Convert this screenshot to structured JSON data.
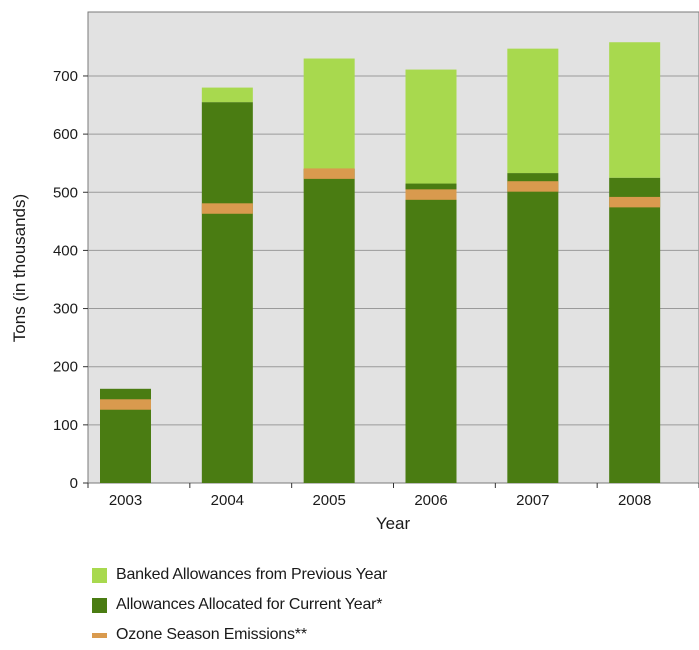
{
  "chart_data": {
    "type": "bar",
    "stacked": true,
    "categories": [
      "2003",
      "2004",
      "2005",
      "2006",
      "2007",
      "2008"
    ],
    "series": [
      {
        "name": "Allowances Allocated for Current Year*",
        "kind": "bar",
        "color": "#4a7c12",
        "values": [
          162,
          655,
          540,
          515,
          533,
          525
        ]
      },
      {
        "name": "Banked Allowances from Previous Year",
        "kind": "bar",
        "color": "#a8d94e",
        "values": [
          0,
          25,
          190,
          196,
          214,
          233
        ]
      },
      {
        "name": "Ozone Season Emissions**",
        "kind": "marker",
        "color": "#d99a4e",
        "values": [
          135,
          472,
          532,
          496,
          510,
          483
        ]
      }
    ],
    "xlabel": "Year",
    "ylabel": "Tons (in thousands)",
    "yticks": [
      0,
      100,
      200,
      300,
      400,
      500,
      600,
      700
    ],
    "ylim": [
      0,
      810
    ],
    "grid": true,
    "legend_position": "bottom"
  },
  "legend": {
    "items": [
      {
        "label": "Banked Allowances from Previous Year",
        "color": "#a8d94e",
        "shape": "box"
      },
      {
        "label": "Allowances Allocated for Current Year*",
        "color": "#4a7c12",
        "shape": "box"
      },
      {
        "label": "Ozone Season Emissions**",
        "color": "#d99a4e",
        "shape": "line"
      }
    ]
  }
}
